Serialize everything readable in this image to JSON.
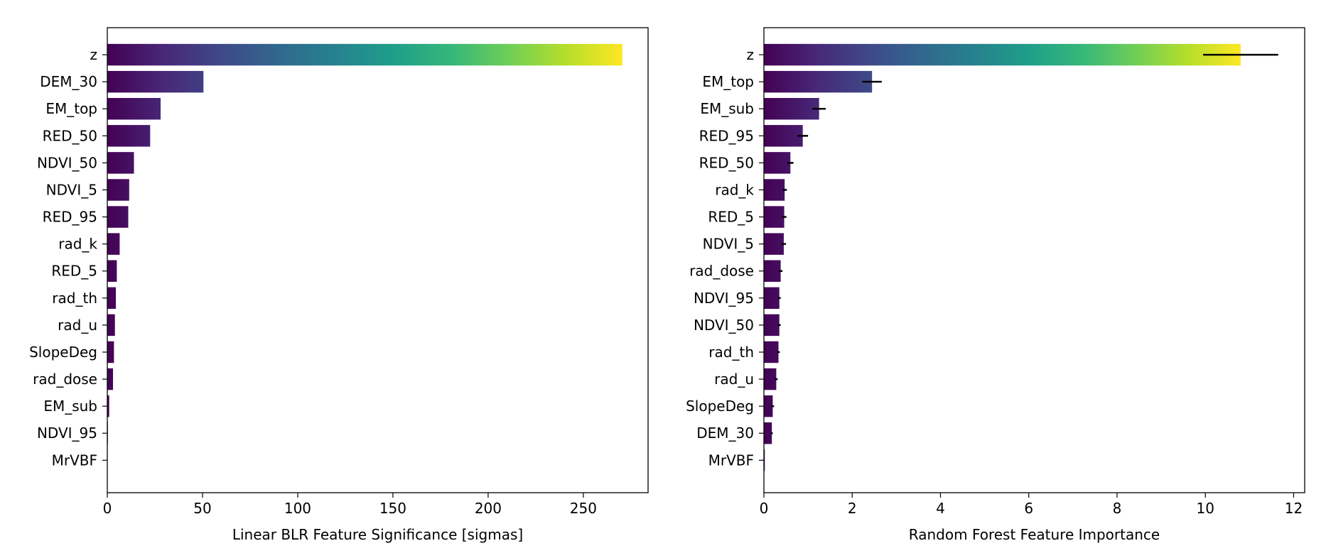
{
  "chart_data": [
    {
      "type": "bar",
      "orientation": "horizontal",
      "xlabel": "Linear BLR Feature Significance [sigmas]",
      "ylabel": "",
      "xlim": [
        0,
        284
      ],
      "xticks": [
        0,
        50,
        100,
        150,
        200,
        250
      ],
      "colormap": "viridis",
      "grid": false,
      "categories": [
        "z",
        "DEM_30",
        "EM_top",
        "RED_50",
        "NDVI_50",
        "NDVI_5",
        "RED_95",
        "rad_k",
        "RED_5",
        "rad_th",
        "rad_u",
        "SlopeDeg",
        "rad_dose",
        "EM_sub",
        "NDVI_95",
        "MrVBF"
      ],
      "values": [
        270.5,
        50.5,
        28,
        22.5,
        14,
        11.5,
        11,
        6.5,
        5,
        4.5,
        4,
        3.5,
        3,
        1,
        0.3,
        0.1
      ]
    },
    {
      "type": "bar",
      "orientation": "horizontal",
      "xlabel": "Random Forest Feature Importance",
      "ylabel": "",
      "xlim": [
        0,
        12.25
      ],
      "xticks": [
        0,
        2,
        4,
        6,
        8,
        10,
        12
      ],
      "colormap": "viridis",
      "grid": false,
      "categories": [
        "z",
        "EM_top",
        "EM_sub",
        "RED_95",
        "RED_50",
        "rad_k",
        "RED_5",
        "NDVI_5",
        "rad_dose",
        "NDVI_95",
        "NDVI_50",
        "rad_th",
        "rad_u",
        "SlopeDeg",
        "DEM_30",
        "MrVBF"
      ],
      "values": [
        10.8,
        2.45,
        1.25,
        0.88,
        0.6,
        0.47,
        0.46,
        0.45,
        0.38,
        0.35,
        0.35,
        0.33,
        0.28,
        0.2,
        0.18,
        0.02
      ],
      "errors": [
        0.85,
        0.22,
        0.15,
        0.12,
        0.07,
        0.05,
        0.05,
        0.05,
        0.04,
        0.03,
        0.03,
        0.03,
        0.03,
        0.03,
        0.02,
        0.0
      ]
    }
  ]
}
